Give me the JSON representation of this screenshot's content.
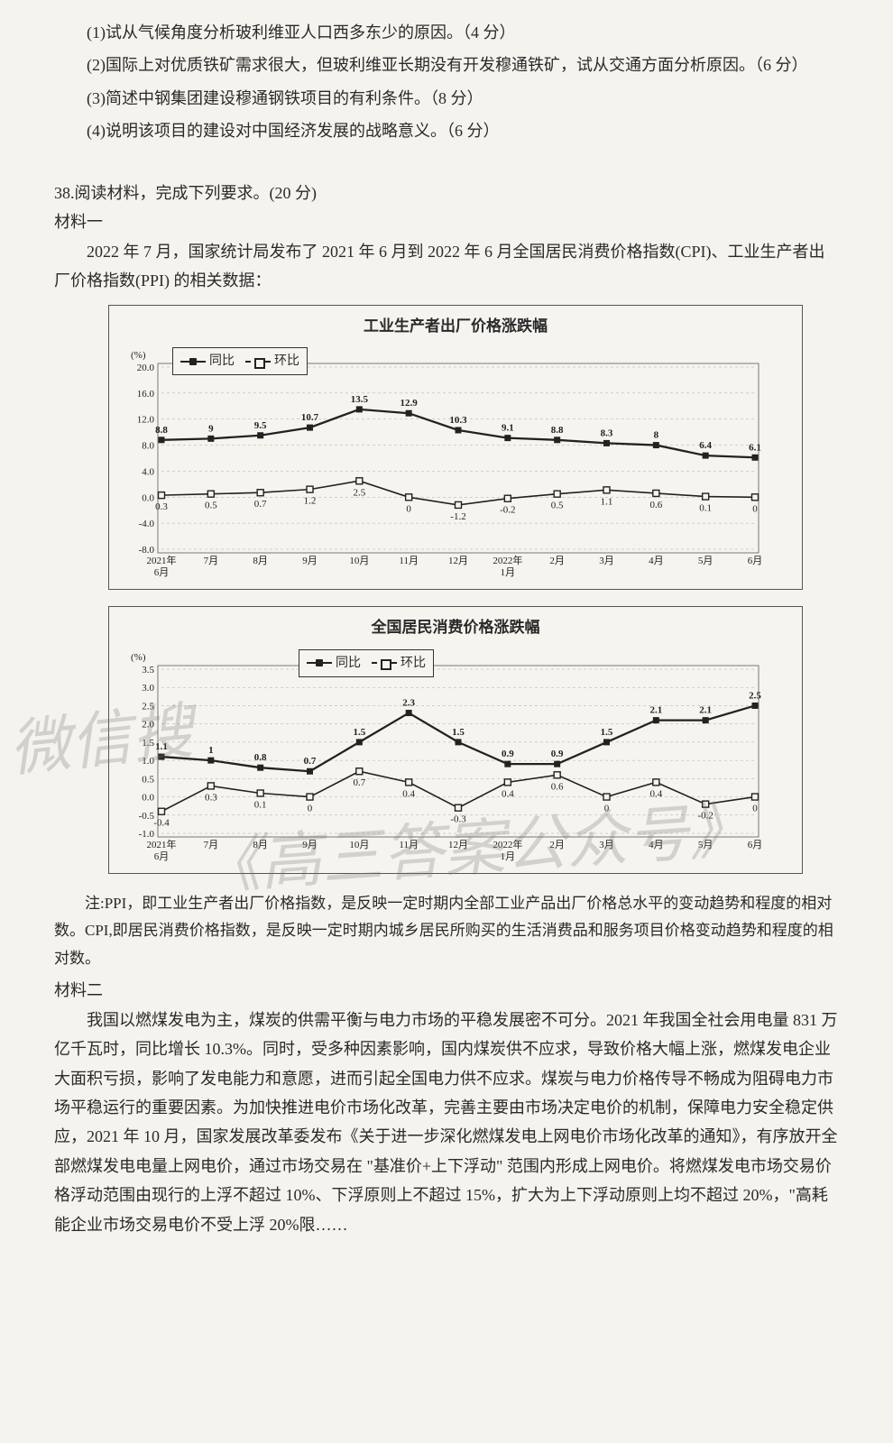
{
  "q37": {
    "item1": "(1)试从气候角度分析玻利维亚人口西多东少的原因。（4 分）",
    "item2": "(2)国际上对优质铁矿需求很大，但玻利维亚长期没有开发穆通铁矿，试从交通方面分析原因。（6 分）",
    "item3": "(3)简述中钢集团建设穆通钢铁项目的有利条件。（8 分）",
    "item4": "(4)说明该项目的建设对中国经济发展的战略意义。（6 分）"
  },
  "q38": {
    "stem": "38.阅读材料，完成下列要求。(20 分)",
    "mat1_label": "材料一",
    "mat1_para": "2022 年 7 月，国家统计局发布了 2021 年 6 月到 2022 年 6 月全国居民消费价格指数(CPI)、工业生产者出厂价格指数(PPI) 的相关数据：",
    "note": "注:PPI，即工业生产者出厂价格指数，是反映一定时期内全部工业产品出厂价格总水平的变动趋势和程度的相对数。CPI,即居民消费价格指数，是反映一定时期内城乡居民所购买的生活消费品和服务项目价格变动趋势和程度的相对数。",
    "mat2_label": "材料二",
    "mat2_para": "我国以燃煤发电为主，煤炭的供需平衡与电力市场的平稳发展密不可分。2021 年我国全社会用电量 831 万亿千瓦时，同比增长 10.3%。同时，受多种因素影响，国内煤炭供不应求，导致价格大幅上涨，燃煤发电企业大面积亏损，影响了发电能力和意愿，进而引起全国电力供不应求。煤炭与电力价格传导不畅成为阻碍电力市场平稳运行的重要因素。为加快推进电价市场化改革，完善主要由市场决定电价的机制，保障电力安全稳定供应，2021 年 10 月，国家发展改革委发布《关于进一步深化燃煤发电上网电价市场化改革的通知》，有序放开全部燃煤发电电量上网电价，通过市场交易在 \"基准价+上下浮动\" 范围内形成上网电价。将燃煤发电市场交易价格浮动范围由现行的上浮不超过 10%、下浮原则上不超过 15%，扩大为上下浮动原则上均不超过 20%，\"高耗能企业市场交易电价不受上浮 20%限……"
  },
  "chart1": {
    "title": "工业生产者出厂价格涨跌幅",
    "y_unit": "(%)",
    "legend1": "同比",
    "legend2": "环比",
    "categories": [
      "2021年6月",
      "7月",
      "8月",
      "9月",
      "10月",
      "11月",
      "12月",
      "2022年1月",
      "2月",
      "3月",
      "4月",
      "5月",
      "6月"
    ],
    "series_yoy": [
      8.8,
      9.0,
      9.5,
      10.7,
      13.5,
      12.9,
      10.3,
      9.1,
      8.8,
      8.3,
      8.0,
      6.4,
      6.1
    ],
    "series_mom": [
      0.3,
      0.5,
      0.7,
      1.2,
      2.5,
      0.0,
      -1.2,
      -0.2,
      0.5,
      1.1,
      0.6,
      0.1,
      0.0
    ],
    "ylim": [
      -8,
      20
    ],
    "ytick_step": 4,
    "colors": {
      "line": "#222222",
      "bg": "#f6f4ef",
      "grid": "#aaaaaa",
      "text": "#222222"
    },
    "label_fontsize": 11
  },
  "chart2": {
    "title": "全国居民消费价格涨跌幅",
    "y_unit": "(%)",
    "legend1": "同比",
    "legend2": "环比",
    "categories": [
      "2021年6月",
      "7月",
      "8月",
      "9月",
      "10月",
      "11月",
      "12月",
      "2022年1月",
      "2月",
      "3月",
      "4月",
      "5月",
      "6月"
    ],
    "series_yoy": [
      1.1,
      1.0,
      0.8,
      0.7,
      1.5,
      2.3,
      1.5,
      0.9,
      0.9,
      1.5,
      2.1,
      2.1,
      2.5
    ],
    "series_mom": [
      -0.4,
      0.3,
      0.1,
      0.0,
      0.7,
      0.4,
      -0.3,
      0.4,
      0.6,
      0.0,
      0.4,
      -0.2,
      0.0
    ],
    "ylim": [
      -1,
      3.5
    ],
    "ytick_step": 0.5,
    "colors": {
      "line": "#222222",
      "bg": "#f6f4ef",
      "grid": "#aaaaaa",
      "text": "#222222"
    },
    "label_fontsize": 11
  },
  "watermarks": {
    "wm1": "微信搜",
    "wm2": "《高三答案公众号》"
  }
}
